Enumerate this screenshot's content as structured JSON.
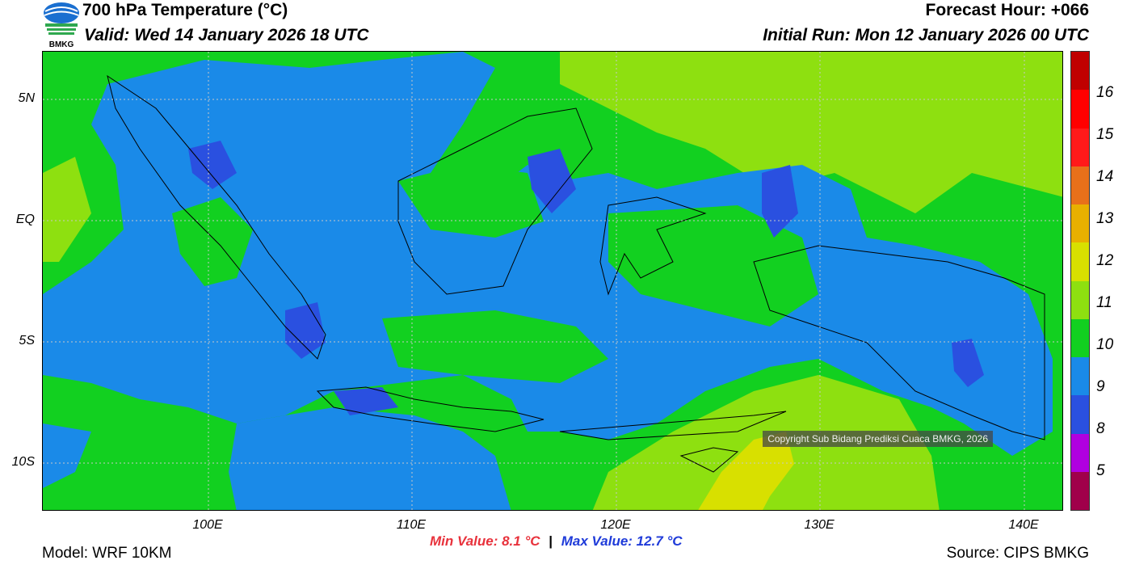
{
  "header": {
    "title": "700 hPa Temperature (°C)",
    "valid": "Valid: Wed 14 January 2026 18 UTC",
    "forecast_hour": "Forecast Hour: +066",
    "initial_run": "Initial Run: Mon 12 January 2026 00 UTC",
    "logo_text": "BMKG"
  },
  "axes": {
    "lat_labels": [
      "5N",
      "EQ",
      "5S",
      "10S"
    ],
    "lon_labels": [
      "100E",
      "110E",
      "120E",
      "130E",
      "140E"
    ]
  },
  "colorbar": {
    "labels": [
      "16",
      "15",
      "14",
      "13",
      "12",
      "11",
      "10",
      "9",
      "8",
      "5"
    ],
    "colors": [
      "#c00000",
      "#ff0000",
      "#ff1a1a",
      "#e8701a",
      "#e8b000",
      "#d8e000",
      "#8ee010",
      "#12d020",
      "#1a8ae8",
      "#2a50e0",
      "#b000e0",
      "#a0004a"
    ]
  },
  "map": {
    "colors": {
      "green_11": "#12d020",
      "lightgreen_12": "#8ee010",
      "blue_10": "#1a8ae8",
      "darkblue_9": "#2a50e0",
      "yellow_13": "#d8e000"
    },
    "copyright": "Copyright Sub Bidang Prediksi Cuaca BMKG, 2026"
  },
  "stats": {
    "min": "Min Value: 8.1 °C",
    "separator": "|",
    "max": "Max Value: 12.7 °C"
  },
  "footer": {
    "model": "Model: WRF 10KM",
    "source": "Source: CIPS BMKG"
  }
}
